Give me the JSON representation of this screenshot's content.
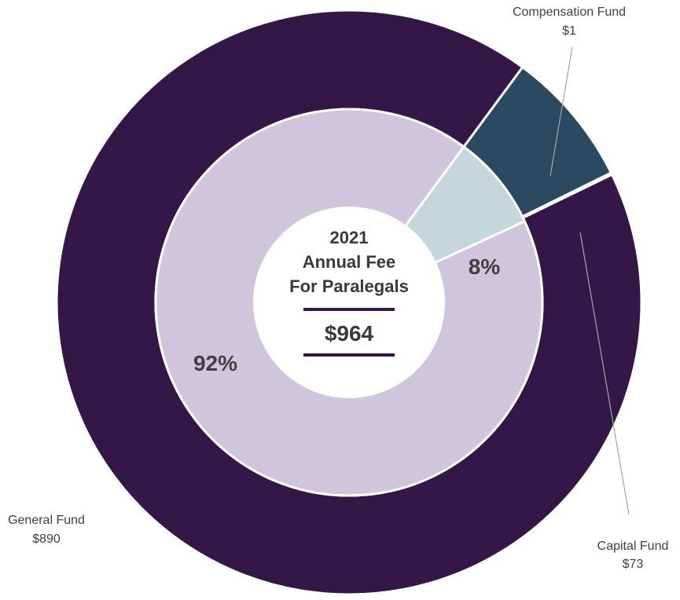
{
  "chart_data": {
    "type": "pie",
    "title_lines": [
      "2021",
      "Annual Fee",
      "For Paralegals"
    ],
    "total_label": "$964",
    "outer_ring": {
      "slices": [
        {
          "name": "General Fund",
          "value": 890,
          "value_label": "$890",
          "color": "#341746"
        },
        {
          "name": "Compensation Fund",
          "value": 1,
          "value_label": "$1",
          "color": "#d1b00d"
        },
        {
          "name": "Capital Fund",
          "value": 73,
          "value_label": "$73",
          "color": "#2b4960"
        }
      ]
    },
    "inner_ring": {
      "slices": [
        {
          "label": "92%",
          "value": 92,
          "color": "#cfc5dd"
        },
        {
          "label": "8%",
          "value": 8,
          "color": "#c6d7dc"
        }
      ]
    },
    "colors": {
      "separator": "#ffffff",
      "center": "#ffffff",
      "leader_line": "#a6a6a6",
      "rule": "#341746"
    }
  }
}
